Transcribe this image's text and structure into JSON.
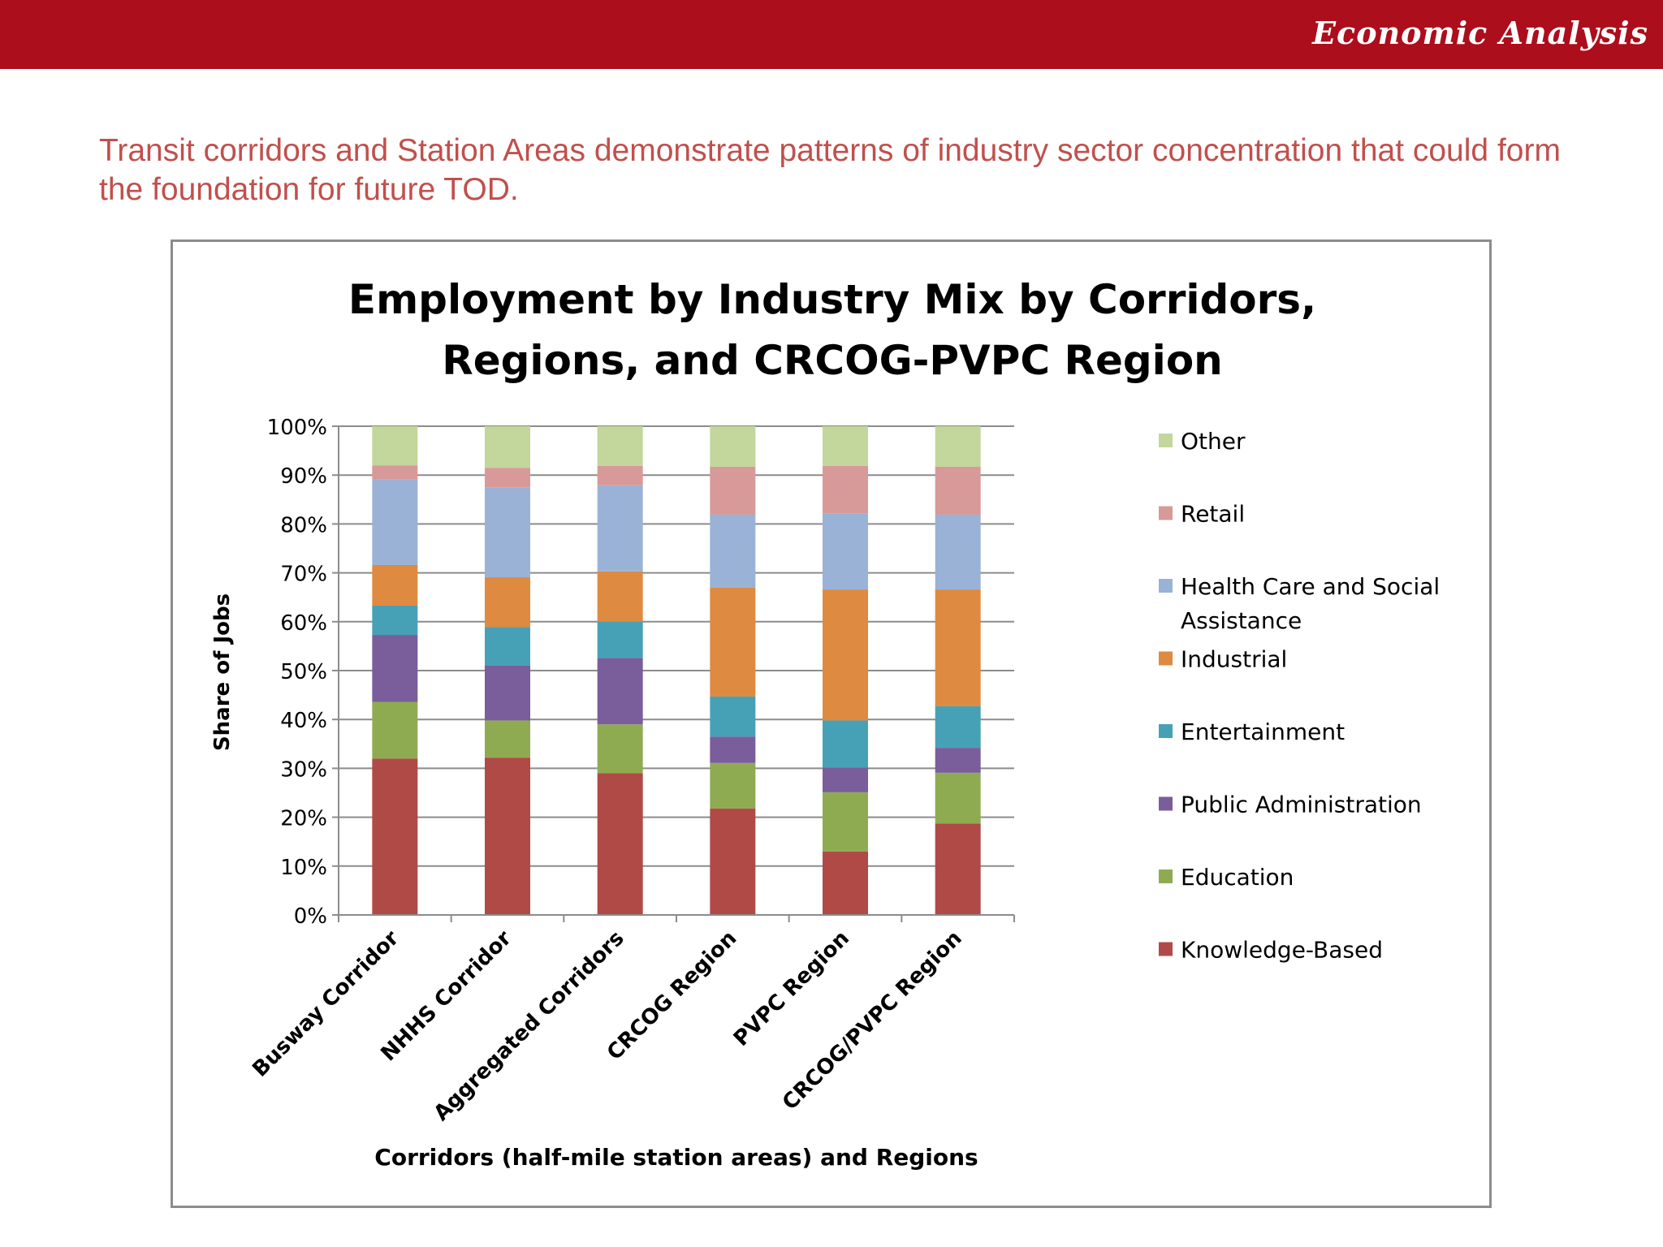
{
  "header": {
    "banner_title": "Economic Analysis",
    "banner_color": "#ac0e1c"
  },
  "headline": "Transit corridors and Station Areas demonstrate patterns of industry sector concentration that could form the foundation for future TOD.",
  "chart_data": {
    "type": "bar",
    "stacked": true,
    "title": "Employment by Industry Mix by Corridors, Regions, and CRCOG-PVPC Region",
    "title_lines": [
      "Employment by Industry Mix by Corridors,",
      "Regions, and CRCOG-PVPC Region"
    ],
    "xlabel": "Corridors (half-mile station areas) and Regions",
    "ylabel": "Share of Jobs",
    "ylim": [
      0,
      100
    ],
    "yticks": [
      "0%",
      "10%",
      "20%",
      "30%",
      "40%",
      "50%",
      "60%",
      "70%",
      "80%",
      "90%",
      "100%"
    ],
    "grid": true,
    "legend_position": "right",
    "categories": [
      "Busway Corridor",
      "NHHS Corridor",
      "Aggregated Corridors",
      "CRCOG Region",
      "PVPC Region",
      "CRCOG/PVPC Region"
    ],
    "series": [
      {
        "name": "Knowledge-Based",
        "color": "#b04a47",
        "values": [
          32,
          32.2,
          29,
          21.8,
          13,
          18.7
        ]
      },
      {
        "name": "Education",
        "color": "#8fab51",
        "values": [
          11.6,
          7.6,
          10,
          9.3,
          12.1,
          10.4
        ]
      },
      {
        "name": "Public Administration",
        "color": "#7a5d9b",
        "values": [
          13.7,
          11.2,
          13.6,
          5.4,
          5.1,
          5.1
        ]
      },
      {
        "name": "Entertainment",
        "color": "#46a1b7",
        "values": [
          6,
          7.9,
          7.4,
          8.2,
          9.6,
          8.5
        ]
      },
      {
        "name": "Industrial",
        "color": "#de8a40",
        "values": [
          8.3,
          10.2,
          10.3,
          22.3,
          26.8,
          23.9
        ]
      },
      {
        "name": "Health Care and Social Assistance",
        "color": "#9ab2d6",
        "values": [
          17.5,
          18.4,
          17.6,
          14.9,
          15.6,
          15.3
        ]
      },
      {
        "name": "Retail",
        "color": "#d79a98",
        "values": [
          2.9,
          4,
          4,
          9.8,
          9.7,
          9.8
        ]
      },
      {
        "name": "Other",
        "color": "#c3d69b",
        "values": [
          8,
          8.5,
          8.1,
          8.3,
          8.1,
          8.3
        ]
      }
    ],
    "legend_order": [
      "Other",
      "Retail",
      "Health Care and Social Assistance",
      "Industrial",
      "Entertainment",
      "Public Administration",
      "Education",
      "Knowledge-Based"
    ],
    "legend_lines": {
      "Health Care and Social Assistance": [
        "Health Care and Social",
        "Assistance"
      ]
    }
  }
}
